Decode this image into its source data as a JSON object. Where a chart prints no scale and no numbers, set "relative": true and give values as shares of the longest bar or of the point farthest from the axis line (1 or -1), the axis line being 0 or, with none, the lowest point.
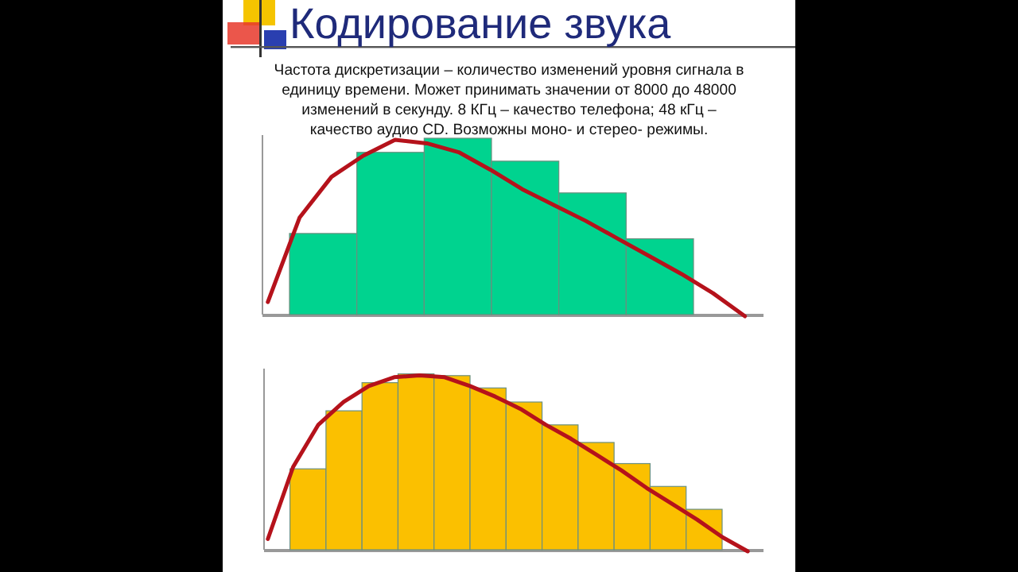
{
  "chart_data": [
    {
      "type": "bar",
      "title": "Кодирование звука",
      "subtitle": "Частота дискретизации – количество изменений уровня сигнала в единицу времени. Может принимать значении от 8000 до 48000 изменений в секунду.  8 КГц – качество телефона; 48 кГц – качество аудио CD. Возможны моно- и стерео- режимы.",
      "relative": true,
      "color": "#00d38f",
      "categories": [
        null,
        null,
        null,
        null,
        null,
        null
      ],
      "values": [
        0.46,
        0.92,
        1,
        0.87,
        0.69,
        0.43
      ]
    },
    {
      "type": "line",
      "relative": true,
      "color": "#b5121b",
      "categories": [
        null,
        null,
        null,
        null,
        null,
        null,
        null,
        null,
        null,
        null,
        null,
        null,
        null,
        null,
        null,
        null
      ],
      "values": [
        0.08,
        0.56,
        0.79,
        0.91,
        1,
        0.98,
        0.93,
        0.83,
        0.72,
        0.63,
        0.54,
        0.44,
        0.34,
        0.24,
        0.13,
        0
      ]
    },
    {
      "type": "bar",
      "relative": true,
      "color": "#fbc000",
      "categories": [
        null,
        null,
        null,
        null,
        null,
        null,
        null,
        null,
        null,
        null,
        null,
        null
      ],
      "values": [
        0.46,
        0.79,
        0.95,
        1,
        0.99,
        0.92,
        0.84,
        0.71,
        0.61,
        0.49,
        0.36,
        0.23
      ]
    },
    {
      "type": "line",
      "relative": true,
      "color": "#b5121b",
      "categories": [
        null,
        null,
        null,
        null,
        null,
        null,
        null,
        null,
        null,
        null,
        null,
        null,
        null,
        null,
        null,
        null,
        null,
        null,
        null,
        null
      ],
      "values": [
        0.07,
        0.48,
        0.72,
        0.85,
        0.94,
        0.99,
        1,
        0.99,
        0.94,
        0.88,
        0.81,
        0.72,
        0.64,
        0.55,
        0.46,
        0.36,
        0.27,
        0.18,
        0.08,
        0
      ]
    }
  ]
}
